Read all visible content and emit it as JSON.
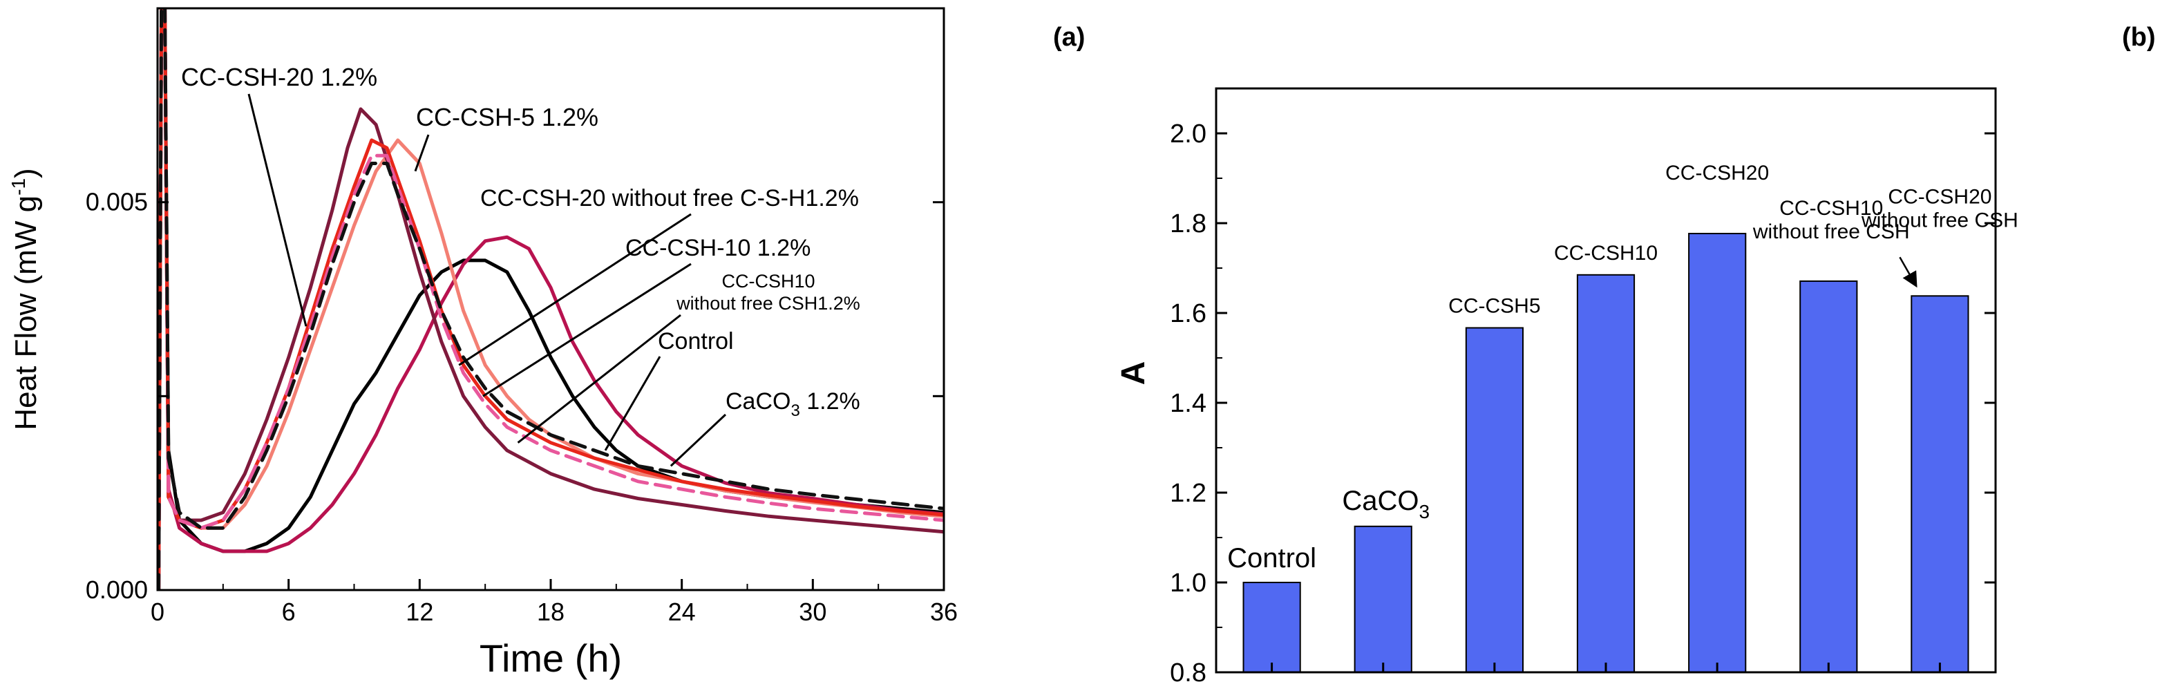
{
  "panels": {
    "a": {
      "label": "(a)"
    },
    "b": {
      "label": "(b)"
    }
  },
  "chart_data": [
    {
      "type": "line",
      "panel": "a",
      "xlabel": "Time (h)",
      "ylabel": "Heat Flow (mW g-1)",
      "ylabel_parts": {
        "main": "Heat Flow (mW g",
        "sup": "-1",
        "close": ")"
      },
      "xlim": [
        0,
        36
      ],
      "ylim": [
        0,
        0.0075
      ],
      "xticks": [
        0,
        6,
        12,
        18,
        24,
        30,
        36
      ],
      "yticks": [
        0.0,
        0.0025,
        0.005
      ],
      "ytick_labels": [
        "0.000",
        "",
        "0.005"
      ],
      "series": [
        {
          "name": "Control",
          "color": "#000000",
          "dash": false,
          "points": [
            [
              0.5,
              0.0018
            ],
            [
              1,
              0.0009
            ],
            [
              2,
              0.0006
            ],
            [
              3,
              0.0005
            ],
            [
              4,
              0.0005
            ],
            [
              5,
              0.0006
            ],
            [
              6,
              0.0008
            ],
            [
              7,
              0.0012
            ],
            [
              8,
              0.0018
            ],
            [
              9,
              0.0024
            ],
            [
              10,
              0.0028
            ],
            [
              11,
              0.0033
            ],
            [
              12,
              0.0038
            ],
            [
              13,
              0.0041
            ],
            [
              14,
              0.00425
            ],
            [
              15,
              0.00425
            ],
            [
              16,
              0.0041
            ],
            [
              17,
              0.0036
            ],
            [
              18,
              0.003
            ],
            [
              19,
              0.0025
            ],
            [
              20,
              0.0021
            ],
            [
              21,
              0.0018
            ],
            [
              22,
              0.0016
            ],
            [
              24,
              0.0014
            ],
            [
              26,
              0.00128
            ],
            [
              28,
              0.0012
            ],
            [
              30,
              0.00115
            ],
            [
              32,
              0.0011
            ],
            [
              34,
              0.00105
            ],
            [
              36,
              0.001
            ]
          ]
        },
        {
          "name": "CaCO3 1.2%",
          "color": "#b8124f",
          "dash": false,
          "points": [
            [
              0.5,
              0.0013
            ],
            [
              1,
              0.0008
            ],
            [
              2,
              0.0006
            ],
            [
              3,
              0.0005
            ],
            [
              4,
              0.0005
            ],
            [
              5,
              0.0005
            ],
            [
              6,
              0.0006
            ],
            [
              7,
              0.0008
            ],
            [
              8,
              0.0011
            ],
            [
              9,
              0.0015
            ],
            [
              10,
              0.002
            ],
            [
              11,
              0.0026
            ],
            [
              12,
              0.0031
            ],
            [
              13,
              0.0037
            ],
            [
              14,
              0.0042
            ],
            [
              15,
              0.0045
            ],
            [
              16,
              0.00455
            ],
            [
              17,
              0.0044
            ],
            [
              18,
              0.0039
            ],
            [
              19,
              0.0032
            ],
            [
              20,
              0.0027
            ],
            [
              21,
              0.0023
            ],
            [
              22,
              0.002
            ],
            [
              24,
              0.0016
            ],
            [
              26,
              0.00138
            ],
            [
              28,
              0.00125
            ],
            [
              30,
              0.00118
            ],
            [
              32,
              0.0011
            ],
            [
              34,
              0.00103
            ],
            [
              36,
              0.00098
            ]
          ]
        },
        {
          "name": "CC-CSH-5 1.2%",
          "color": "#f37f73",
          "dash": false,
          "points": [
            [
              0.5,
              0.0012
            ],
            [
              1,
              0.0009
            ],
            [
              2,
              0.0008
            ],
            [
              3,
              0.0008
            ],
            [
              4,
              0.0011
            ],
            [
              5,
              0.0016
            ],
            [
              6,
              0.0023
            ],
            [
              7,
              0.0031
            ],
            [
              8,
              0.0039
            ],
            [
              9,
              0.0047
            ],
            [
              10,
              0.0054
            ],
            [
              11,
              0.0058
            ],
            [
              12,
              0.0055
            ],
            [
              13,
              0.0046
            ],
            [
              14,
              0.0036
            ],
            [
              15,
              0.0029
            ],
            [
              16,
              0.0025
            ],
            [
              17,
              0.0022
            ],
            [
              18,
              0.002
            ],
            [
              20,
              0.0017
            ],
            [
              22,
              0.0015
            ],
            [
              24,
              0.0014
            ],
            [
              26,
              0.00128
            ],
            [
              28,
              0.0012
            ],
            [
              30,
              0.00113
            ],
            [
              32,
              0.00107
            ],
            [
              34,
              0.001
            ],
            [
              36,
              0.00095
            ]
          ]
        },
        {
          "name": "CC-CSH-20 1.2%",
          "color": "#7f1a3c",
          "dash": false,
          "points": [
            [
              0.5,
              0.0012
            ],
            [
              1,
              0.0009
            ],
            [
              2,
              0.0009
            ],
            [
              3,
              0.001
            ],
            [
              4,
              0.0015
            ],
            [
              5,
              0.0022
            ],
            [
              6,
              0.003
            ],
            [
              7,
              0.0039
            ],
            [
              8,
              0.0049
            ],
            [
              8.7,
              0.0057
            ],
            [
              9.3,
              0.0062
            ],
            [
              10,
              0.006
            ],
            [
              11,
              0.0051
            ],
            [
              12,
              0.0041
            ],
            [
              13,
              0.0032
            ],
            [
              14,
              0.0025
            ],
            [
              15,
              0.0021
            ],
            [
              16,
              0.0018
            ],
            [
              18,
              0.0015
            ],
            [
              20,
              0.0013
            ],
            [
              22,
              0.00118
            ],
            [
              24,
              0.0011
            ],
            [
              26,
              0.00102
            ],
            [
              28,
              0.00095
            ],
            [
              30,
              0.0009
            ],
            [
              32,
              0.00085
            ],
            [
              34,
              0.0008
            ],
            [
              36,
              0.00075
            ]
          ]
        },
        {
          "name": "CC-CSH-10 1.2%",
          "color": "#e8261a",
          "dash": false,
          "points": [
            [
              0.5,
              0.0012
            ],
            [
              1,
              0.0009
            ],
            [
              2,
              0.0008
            ],
            [
              3,
              0.0009
            ],
            [
              4,
              0.0013
            ],
            [
              5,
              0.0019
            ],
            [
              6,
              0.0026
            ],
            [
              7,
              0.0035
            ],
            [
              8,
              0.0044
            ],
            [
              9,
              0.0052
            ],
            [
              9.8,
              0.0058
            ],
            [
              10.5,
              0.0057
            ],
            [
              11,
              0.0053
            ],
            [
              12,
              0.0045
            ],
            [
              13,
              0.0036
            ],
            [
              14,
              0.0029
            ],
            [
              15,
              0.0025
            ],
            [
              16,
              0.0022
            ],
            [
              18,
              0.0019
            ],
            [
              20,
              0.0017
            ],
            [
              22,
              0.00155
            ],
            [
              24,
              0.0014
            ],
            [
              26,
              0.0013
            ],
            [
              28,
              0.00122
            ],
            [
              30,
              0.00115
            ],
            [
              32,
              0.00108
            ],
            [
              34,
              0.00102
            ],
            [
              36,
              0.00097
            ]
          ]
        },
        {
          "name": "CC-CSH10 without free CSH1.2%",
          "color": "#e8579b",
          "dash": true,
          "points": [
            [
              0.5,
              0.0012
            ],
            [
              1,
              0.0009
            ],
            [
              2,
              0.0008
            ],
            [
              3,
              0.0009
            ],
            [
              4,
              0.0013
            ],
            [
              5,
              0.0019
            ],
            [
              6,
              0.0026
            ],
            [
              7,
              0.0034
            ],
            [
              8,
              0.0043
            ],
            [
              9,
              0.0051
            ],
            [
              9.8,
              0.0056
            ],
            [
              10.5,
              0.0056
            ],
            [
              11,
              0.0052
            ],
            [
              12,
              0.0044
            ],
            [
              13,
              0.0035
            ],
            [
              14,
              0.0028
            ],
            [
              15,
              0.0024
            ],
            [
              16,
              0.0021
            ],
            [
              18,
              0.0018
            ],
            [
              20,
              0.0016
            ],
            [
              22,
              0.0014
            ],
            [
              24,
              0.0013
            ],
            [
              26,
              0.0012
            ],
            [
              28,
              0.00112
            ],
            [
              30,
              0.00105
            ],
            [
              32,
              0.001
            ],
            [
              34,
              0.00095
            ],
            [
              36,
              0.0009
            ]
          ]
        },
        {
          "name": "CC-CSH-20 without free C-S-H1.2%",
          "color": "#111111",
          "dash": true,
          "points": [
            [
              0.5,
              0.0017
            ],
            [
              1,
              0.001
            ],
            [
              2,
              0.0008
            ],
            [
              3,
              0.0008
            ],
            [
              4,
              0.0012
            ],
            [
              5,
              0.0018
            ],
            [
              6,
              0.0025
            ],
            [
              7,
              0.0033
            ],
            [
              8,
              0.0042
            ],
            [
              9,
              0.005
            ],
            [
              9.8,
              0.0055
            ],
            [
              10.5,
              0.0055
            ],
            [
              11,
              0.0051
            ],
            [
              12,
              0.0044
            ],
            [
              13,
              0.0036
            ],
            [
              14,
              0.003
            ],
            [
              15,
              0.0026
            ],
            [
              16,
              0.0023
            ],
            [
              18,
              0.002
            ],
            [
              20,
              0.0018
            ],
            [
              22,
              0.0016
            ],
            [
              24,
              0.0015
            ],
            [
              26,
              0.0014
            ],
            [
              28,
              0.0013
            ],
            [
              30,
              0.00123
            ],
            [
              32,
              0.00117
            ],
            [
              34,
              0.00111
            ],
            [
              36,
              0.00105
            ]
          ]
        }
      ],
      "annotations": [
        {
          "text": "CC-CSH-20 1.2%",
          "target_series": "CC-CSH-20 1.2%",
          "anchor": [
            6.8,
            0.0034
          ]
        },
        {
          "text": "CC-CSH-5 1.2%",
          "target_series": "CC-CSH-5 1.2%",
          "anchor": [
            11.8,
            0.0054
          ]
        },
        {
          "text": "CC-CSH-20 without free C-S-H1.2%",
          "target_series": "CC-CSH-20 without free C-S-H1.2%",
          "anchor": [
            13.8,
            0.0029
          ]
        },
        {
          "text": "CC-CSH-10 1.2%",
          "target_series": "CC-CSH-10 1.2%",
          "anchor": [
            14.9,
            0.0025
          ]
        },
        {
          "text_lines": [
            "CC-CSH10",
            "without free CSH1.2%"
          ],
          "target_series": "CC-CSH10 without free CSH1.2%",
          "anchor": [
            16.5,
            0.0019
          ]
        },
        {
          "text": "Control",
          "target_series": "Control",
          "anchor": [
            20.5,
            0.0018
          ]
        },
        {
          "text_parts": {
            "main": "CaCO",
            "sub": "3",
            "rest": " 1.2%"
          },
          "target_series": "CaCO3 1.2%",
          "anchor": [
            23.5,
            0.0016
          ]
        }
      ]
    },
    {
      "type": "bar",
      "panel": "b",
      "ylabel": "A",
      "xlabel": "",
      "ylim": [
        0.8,
        2.1
      ],
      "yticks": [
        0.8,
        1.0,
        1.2,
        1.4,
        1.6,
        1.8,
        2.0
      ],
      "ytick_labels": [
        "0.8",
        "1.0",
        "1.2",
        "1.4",
        "1.6",
        "1.8",
        "2.0"
      ],
      "bar_color": "#5169f2",
      "categories": [
        "Control",
        "CaCO3",
        "CC-CSH5",
        "CC-CSH10",
        "CC-CSH20",
        "CC-CSH10 without free CSH",
        "CC-CSH20 without free CSH"
      ],
      "values": [
        1.0,
        1.125,
        1.567,
        1.685,
        1.777,
        1.671,
        1.638
      ],
      "bar_labels": [
        {
          "lines": [
            "Control"
          ],
          "size": "large"
        },
        {
          "parts": {
            "main": "CaCO",
            "sub": "3"
          },
          "size": "large"
        },
        {
          "lines": [
            "CC-CSH5"
          ],
          "size": "small"
        },
        {
          "lines": [
            "CC-CSH10"
          ],
          "size": "small"
        },
        {
          "lines": [
            "CC-CSH20"
          ],
          "size": "small"
        },
        {
          "lines": [
            "CC-CSH10",
            "without free CSH"
          ],
          "size": "small"
        },
        {
          "lines": [
            "CC-CSH20",
            "without free CSH"
          ],
          "size": "small",
          "arrow": true
        }
      ]
    }
  ]
}
